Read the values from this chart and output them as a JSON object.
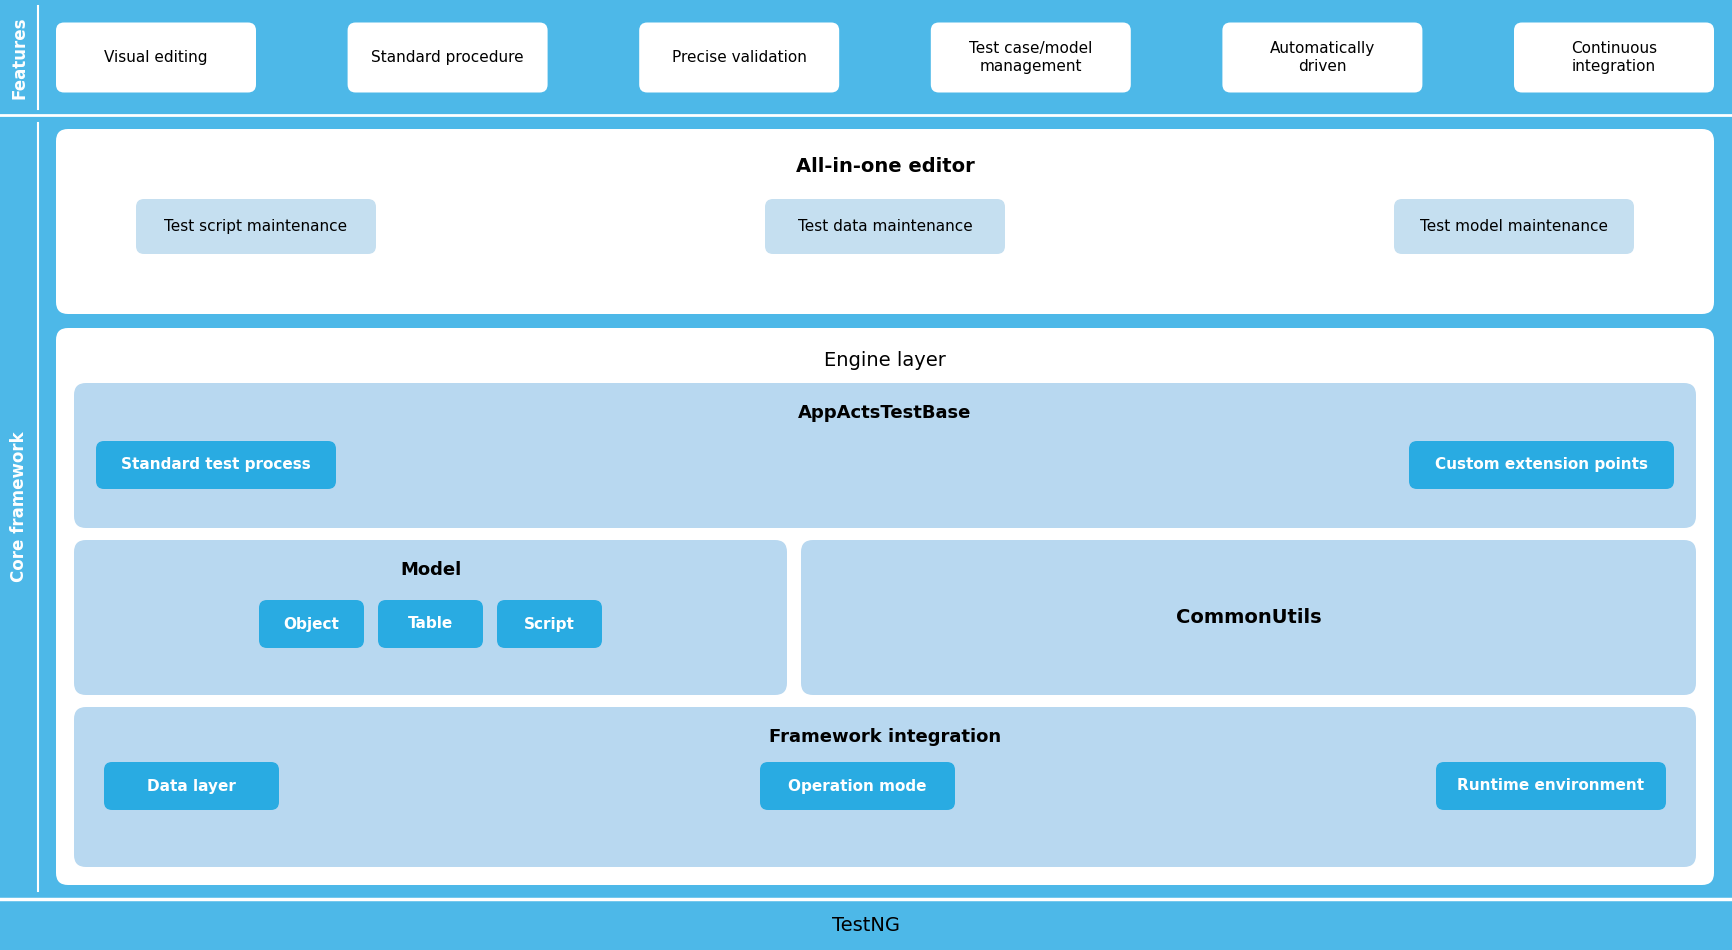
{
  "fig_width": 17.32,
  "fig_height": 9.5,
  "light_blue_bg": "#4db8e8",
  "pale_blue_1": "#b8d8f0",
  "pale_blue_2": "#c5dff0",
  "pale_blue_3": "#cce0f5",
  "white": "#ffffff",
  "cyan_button": "#29abe2",
  "features_label": "Features",
  "core_framework_label": "Core framework",
  "testng_label": "TestNG",
  "feature_boxes": [
    "Visual editing",
    "Standard procedure",
    "Precise validation",
    "Test case/model\nmanagement",
    "Automatically\ndriven",
    "Continuous\nintegration"
  ],
  "editor_title": "All-in-one editor",
  "editor_sub_boxes": [
    "Test script maintenance",
    "Test data maintenance",
    "Test model maintenance"
  ],
  "engine_title": "Engine layer",
  "appacts_title": "AppActsTestBase",
  "appacts_buttons": [
    "Standard test process",
    "Custom extension points"
  ],
  "model_title": "Model",
  "model_buttons": [
    "Object",
    "Table",
    "Script"
  ],
  "commonutils_title": "CommonUtils",
  "framework_title": "Framework integration",
  "framework_buttons": [
    "Data layer",
    "Operation mode",
    "Runtime environment"
  ]
}
